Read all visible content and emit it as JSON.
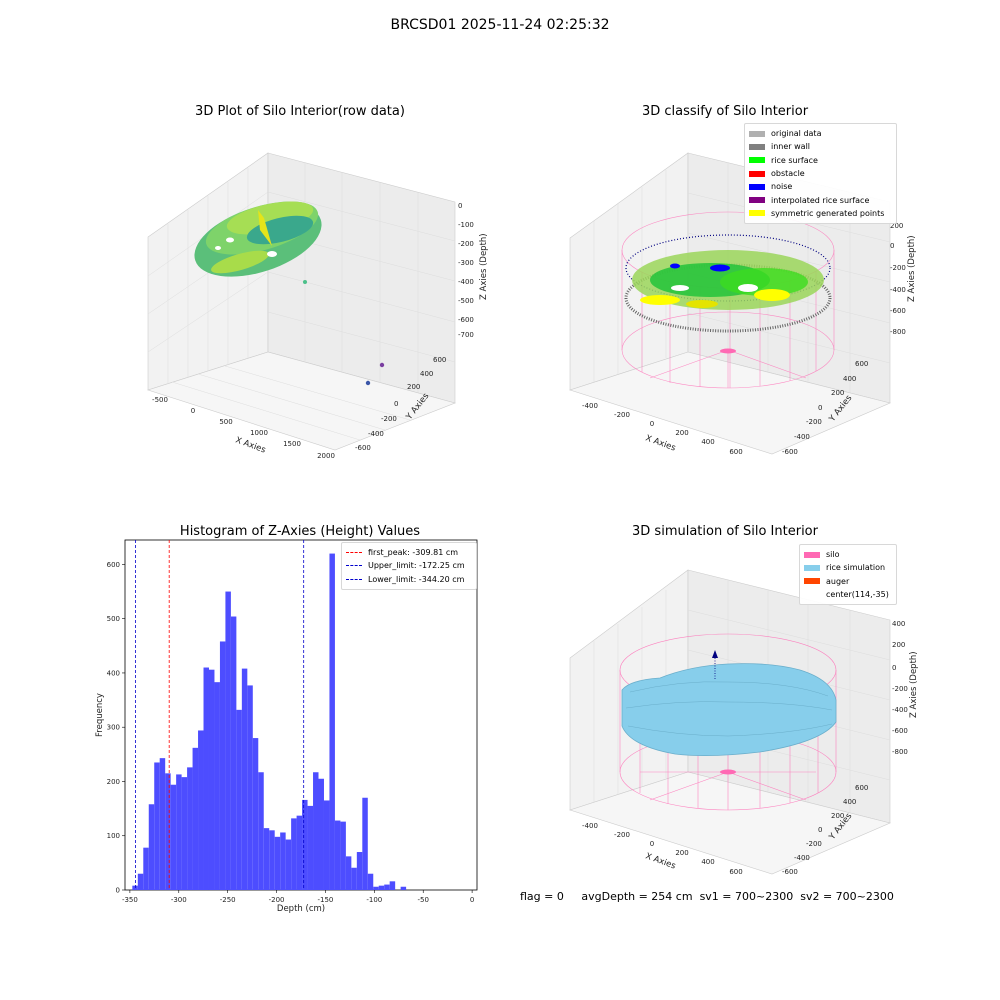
{
  "suptitle": "BRCSD01 2025-11-24 02:25:32",
  "footer": {
    "flag": "flag = 0",
    "avg_depth": "avgDepth = 254 cm",
    "sv1": "sv1 = 700~2300",
    "sv2": "sv2 = 700~2300"
  },
  "colors": {
    "original": "#b0b0b0",
    "inner_wall": "#808080",
    "rice_surface": "#00ff00",
    "obstacle": "#ff0000",
    "noise": "#0000ff",
    "interpolated": "#800080",
    "symmetric": "#ffff00",
    "silo": "#ff69b4",
    "rice_sim": "#87ceeb",
    "auger": "#ff4500",
    "hist_bar": "#4d4dff",
    "first_peak": "#ff0000",
    "limit": "#0000cc"
  },
  "panel1": {
    "title": "3D Plot of Silo Interior(row data)",
    "xlabel": "X Axies",
    "ylabel": "Y Axies",
    "zlabel": "Z Axies (Depth)",
    "xticks": [
      "-500",
      "0",
      "500",
      "1000",
      "1500",
      "2000"
    ],
    "yticks": [
      "-600",
      "-400",
      "-200",
      "0",
      "200",
      "400",
      "600"
    ],
    "zticks": [
      "0",
      "-100",
      "-200",
      "-300",
      "-400",
      "-500",
      "-600",
      "-700"
    ]
  },
  "panel2": {
    "title": "3D classify of Silo Interior",
    "xlabel": "X Axies",
    "ylabel": "Y Axies",
    "zlabel": "Z Axies (Depth)",
    "xticks": [
      "-400",
      "-200",
      "0",
      "200",
      "400",
      "600"
    ],
    "yticks": [
      "-600",
      "-400",
      "-200",
      "0",
      "200",
      "400",
      "600"
    ],
    "zticks": [
      "200",
      "0",
      "-200",
      "-400",
      "-600",
      "-800"
    ],
    "legend": [
      "original data",
      "inner wall",
      "rice surface",
      "obstacle",
      "noise",
      "interpolated rice surface",
      "symmetric generated points"
    ]
  },
  "panel4": {
    "title": "3D simulation of Silo Interior",
    "xlabel": "X Axies",
    "ylabel": "Y Axies",
    "zlabel": "Z Axies (Depth)",
    "xticks": [
      "-400",
      "-200",
      "0",
      "200",
      "400",
      "600"
    ],
    "yticks": [
      "-600",
      "-400",
      "-200",
      "0",
      "200",
      "400",
      "600"
    ],
    "zticks": [
      "400",
      "200",
      "0",
      "-200",
      "-400",
      "-600",
      "-800"
    ],
    "legend": [
      "silo",
      "rice simulation",
      "auger",
      "center(114,-35)"
    ]
  },
  "chart_data": [
    {
      "type": "bar",
      "title": "Histogram of Z-Axies (Height) Values",
      "xlabel": "Depth (cm)",
      "ylabel": "Frequency",
      "xlim": [
        -355,
        5
      ],
      "ylim": [
        0,
        645
      ],
      "xticks": [
        -350,
        -300,
        -250,
        -200,
        -150,
        -100,
        -50,
        0
      ],
      "yticks": [
        0,
        100,
        200,
        300,
        400,
        500,
        600
      ],
      "bin_start": -347.5,
      "bin_width": 5.6,
      "values": [
        8,
        30,
        78,
        158,
        235,
        243,
        215,
        194,
        213,
        208,
        226,
        262,
        294,
        410,
        406,
        383,
        458,
        550,
        504,
        332,
        408,
        377,
        280,
        217,
        114,
        110,
        98,
        106,
        93,
        132,
        137,
        166,
        155,
        217,
        205,
        165,
        620,
        128,
        126,
        62,
        41,
        70,
        170,
        30,
        6,
        8,
        10,
        16,
        0,
        6
      ],
      "lines": [
        {
          "label": "first_peak: -309.81 cm",
          "x": -309.81,
          "color": "#ff0000"
        },
        {
          "label": "Upper_limit: -172.25 cm",
          "x": -172.25,
          "color": "#0000cc"
        },
        {
          "label": "Lower_limit: -344.20 cm",
          "x": -344.2,
          "color": "#0000cc"
        }
      ]
    }
  ]
}
